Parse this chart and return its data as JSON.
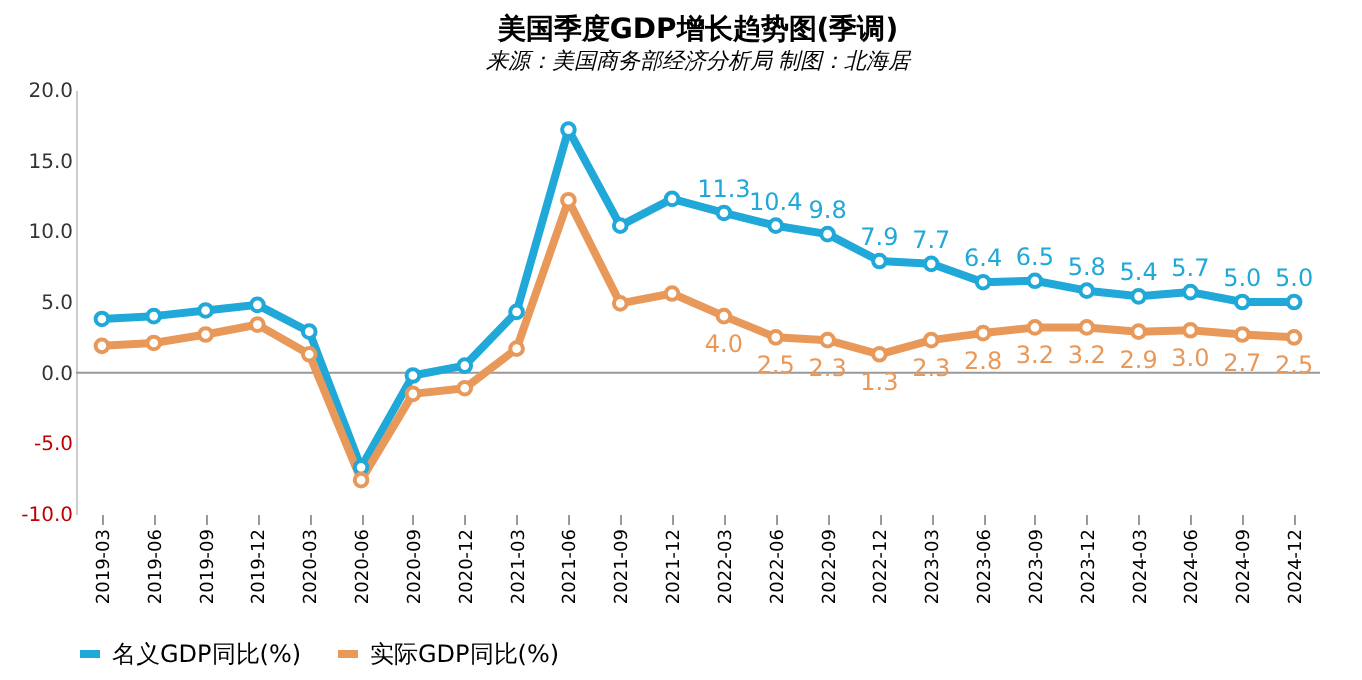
{
  "chart_data": {
    "type": "line",
    "title": "美国季度GDP增长趋势图(季调)",
    "subtitle": "来源：美国商务部经济分析局  制图：北海居",
    "categories": [
      "2019-03",
      "2019-06",
      "2019-09",
      "2019-12",
      "2020-03",
      "2020-06",
      "2020-09",
      "2020-12",
      "2021-03",
      "2021-06",
      "2021-09",
      "2021-12",
      "2022-03",
      "2022-06",
      "2022-09",
      "2022-12",
      "2023-03",
      "2023-06",
      "2023-09",
      "2023-12",
      "2024-03",
      "2024-06",
      "2024-09",
      "2024-12"
    ],
    "series": [
      {
        "name": "名义GDP同比(%)",
        "color": "#1fa8d8",
        "values": [
          3.8,
          4.0,
          4.4,
          4.8,
          2.9,
          -6.7,
          -0.2,
          0.5,
          4.3,
          17.2,
          10.4,
          12.3,
          11.3,
          10.4,
          9.8,
          7.9,
          7.7,
          6.4,
          6.5,
          5.8,
          5.4,
          5.7,
          5.0,
          5.0
        ],
        "value_labels": [
          null,
          null,
          null,
          null,
          null,
          null,
          null,
          null,
          null,
          null,
          null,
          null,
          "11.3",
          "10.4",
          "9.8",
          "7.9",
          "7.7",
          "6.4",
          "6.5",
          "5.8",
          "5.4",
          "5.7",
          "5.0",
          "5.0"
        ]
      },
      {
        "name": "实际GDP同比(%)",
        "color": "#e8995a",
        "values": [
          1.9,
          2.1,
          2.7,
          3.4,
          1.3,
          -7.6,
          -1.5,
          -1.1,
          1.7,
          12.2,
          4.9,
          5.6,
          4.0,
          2.5,
          2.3,
          1.3,
          2.3,
          2.8,
          3.2,
          3.2,
          2.9,
          3.0,
          2.7,
          2.5
        ],
        "value_labels": [
          null,
          null,
          null,
          null,
          null,
          null,
          null,
          null,
          null,
          null,
          null,
          null,
          "4.0",
          "2.5",
          "2.3",
          "1.3",
          "2.3",
          "2.8",
          "3.2",
          "3.2",
          "2.9",
          "3.0",
          "2.7",
          "2.5"
        ]
      }
    ],
    "ylim": [
      -10,
      20
    ],
    "yticks": [
      {
        "value": -10,
        "label": "-10.0"
      },
      {
        "value": -5,
        "label": "-5.0"
      },
      {
        "value": 0,
        "label": "0.0"
      },
      {
        "value": 5,
        "label": "5.0"
      },
      {
        "value": 10,
        "label": "10.0"
      },
      {
        "value": 15,
        "label": "15.0"
      },
      {
        "value": 20,
        "label": "20.0"
      }
    ],
    "ref_lines": [
      {
        "axis": "y",
        "value": 0,
        "color": "#999999"
      }
    ],
    "marker": "circle",
    "line_style": "solid",
    "grid": false,
    "legend": "bottom"
  }
}
